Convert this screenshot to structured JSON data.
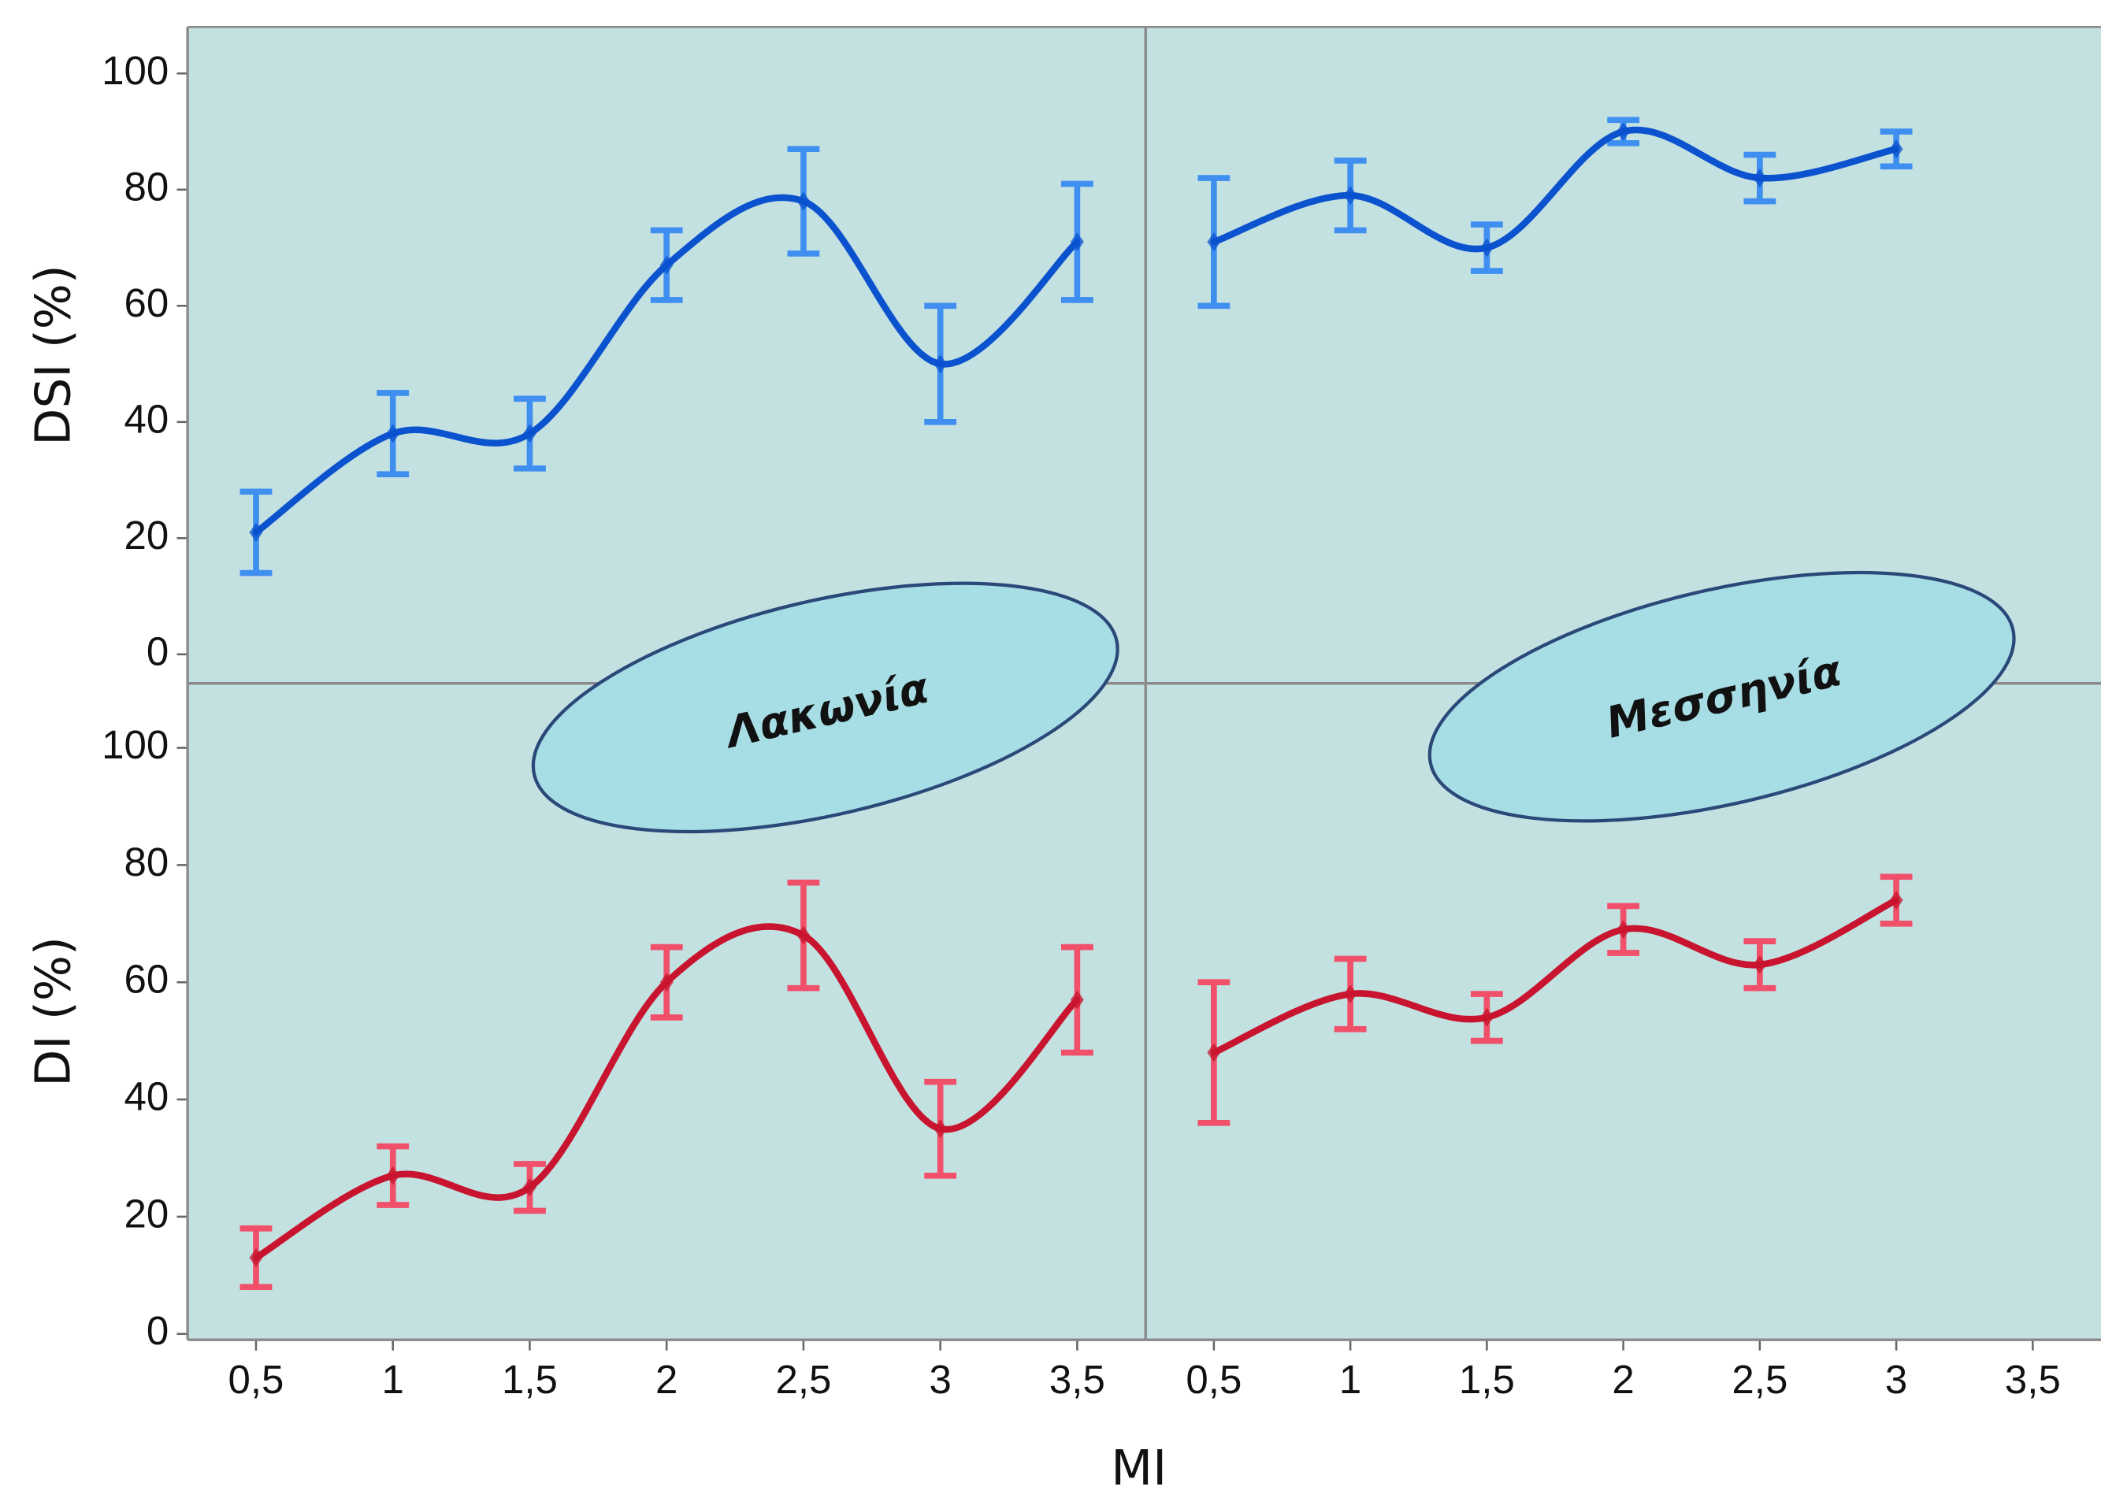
{
  "xlabel": "MI",
  "chart_data": [
    {
      "type": "line",
      "ylabel": "DSI (%)",
      "annotation": "Λακωνία",
      "x": [
        0.5,
        1,
        1.5,
        2,
        2.5,
        3,
        3.5
      ],
      "series": [
        {
          "color": "#0b52cf",
          "error_color": "#3f8ff0",
          "values": [
            21,
            38,
            38,
            67,
            78,
            50,
            71
          ],
          "errors": [
            7,
            7,
            6,
            6,
            9,
            10,
            10
          ]
        }
      ],
      "xlim": [
        0.25,
        3.75
      ],
      "ylim": [
        -5,
        108
      ],
      "yticks": [
        0,
        20,
        40,
        60,
        80,
        100
      ]
    },
    {
      "type": "line",
      "annotation": "Μεσσηνία",
      "x": [
        0.5,
        1,
        1.5,
        2,
        2.5,
        3
      ],
      "series": [
        {
          "color": "#0b52cf",
          "error_color": "#3f8ff0",
          "values": [
            71,
            79,
            70,
            90,
            82,
            87
          ],
          "errors": [
            11,
            6,
            4,
            2,
            4,
            3
          ]
        }
      ],
      "xlim": [
        0.25,
        3.75
      ],
      "ylim": [
        -5,
        108
      ]
    },
    {
      "type": "line",
      "ylabel": "DI (%)",
      "x": [
        0.5,
        1,
        1.5,
        2,
        2.5,
        3,
        3.5
      ],
      "series": [
        {
          "color": "#c8142e",
          "error_color": "#f0506a",
          "values": [
            13,
            27,
            25,
            60,
            68,
            35,
            57
          ],
          "errors": [
            5,
            5,
            4,
            6,
            9,
            8,
            9
          ]
        }
      ],
      "xlim": [
        0.25,
        3.75
      ],
      "ylim": [
        -1,
        111
      ],
      "yticks": [
        0,
        20,
        40,
        60,
        80,
        100
      ],
      "xticks": [
        {
          "value": 0.5,
          "label": "0,5"
        },
        1,
        {
          "value": 1.5,
          "label": "1,5"
        },
        2,
        {
          "value": 2.5,
          "label": "2,5"
        },
        3,
        {
          "value": 3.5,
          "label": "3,5"
        }
      ]
    },
    {
      "type": "line",
      "x": [
        0.5,
        1,
        1.5,
        2,
        2.5,
        3
      ],
      "series": [
        {
          "color": "#c8142e",
          "error_color": "#f0506a",
          "values": [
            48,
            58,
            54,
            69,
            63,
            74
          ],
          "errors": [
            12,
            6,
            4,
            4,
            4,
            4
          ]
        }
      ],
      "xlim": [
        0.25,
        3.75
      ],
      "ylim": [
        -1,
        111
      ],
      "xticks": [
        {
          "value": 0.5,
          "label": "0,5"
        },
        1,
        {
          "value": 1.5,
          "label": "1,5"
        },
        2,
        {
          "value": 2.5,
          "label": "2,5"
        },
        3,
        {
          "value": 3.5,
          "label": "3,5"
        }
      ]
    }
  ]
}
